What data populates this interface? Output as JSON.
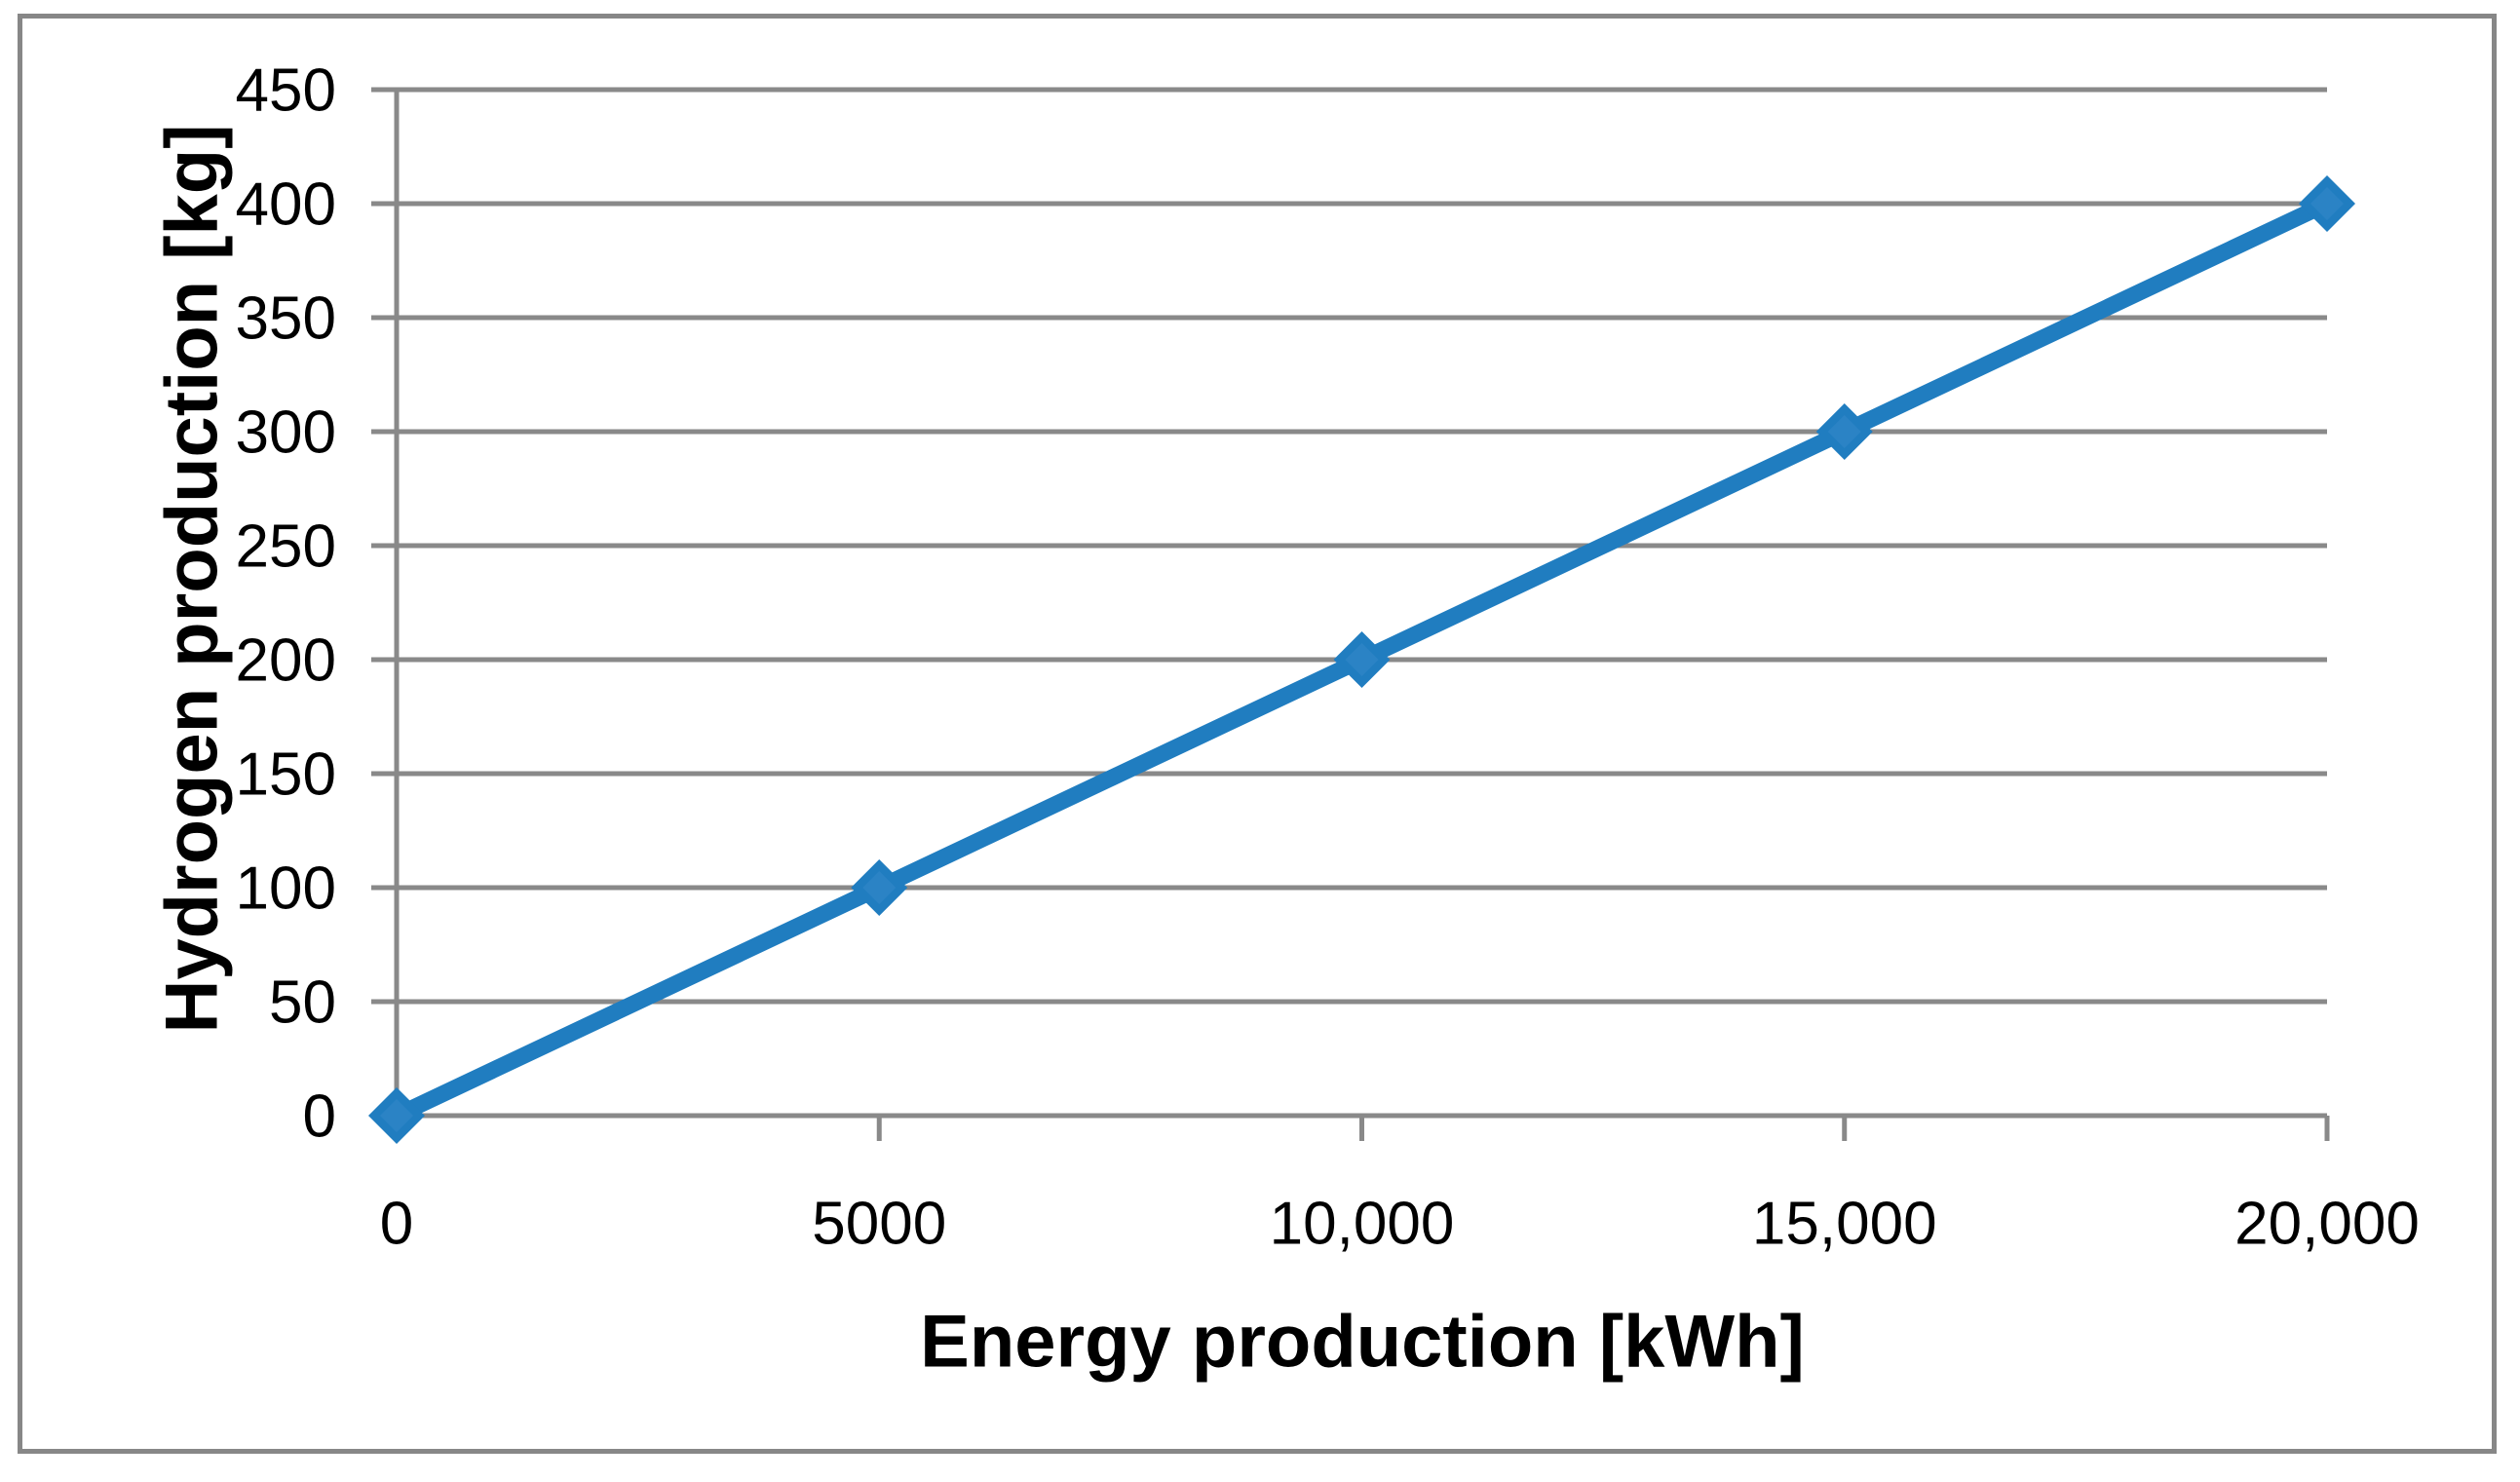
{
  "chart_data": {
    "type": "line",
    "title": "",
    "x": [
      0,
      5000,
      10000,
      15000,
      20000
    ],
    "series": [
      {
        "values": [
          0,
          100,
          200,
          300,
          400
        ]
      }
    ],
    "xlabel": "Energy production [kWh]",
    "ylabel": "Hydrogen production [kg]",
    "xlim": [
      0,
      20000
    ],
    "ylim": [
      0,
      450
    ],
    "x_ticks": [
      0,
      5000,
      10000,
      15000,
      20000
    ],
    "x_tick_labels": [
      "0",
      "5000",
      "10,000",
      "15,000",
      "20,000"
    ],
    "y_ticks": [
      0,
      50,
      100,
      150,
      200,
      250,
      300,
      350,
      400,
      450
    ],
    "y_tick_labels": [
      "0",
      "50",
      "100",
      "150",
      "200",
      "250",
      "300",
      "350",
      "400",
      "450"
    ],
    "grid": "horizontal-major",
    "legend": "none",
    "marker": "diamond",
    "colors": {
      "line": "#207DC0",
      "marker_inner": "#2B83C5",
      "gridline": "#898989",
      "axis": "#898989",
      "frame": "#878787",
      "text": "#000000",
      "background": "#FFFFFF"
    }
  }
}
